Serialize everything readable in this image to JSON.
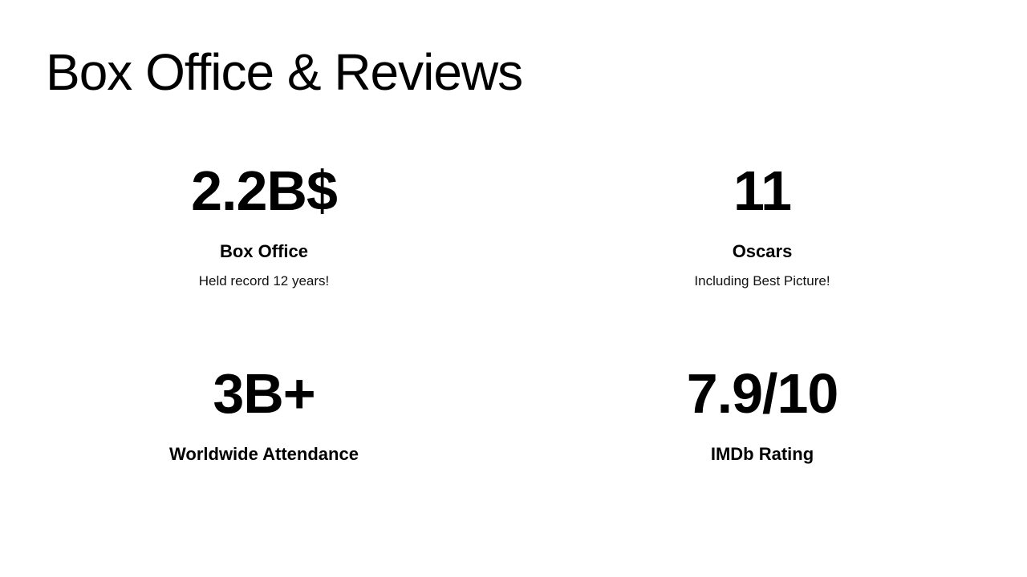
{
  "slide": {
    "title": "Box Office & Reviews",
    "stats": [
      {
        "value": "2.2B$",
        "label": "Box Office",
        "note": "Held record 12 years!"
      },
      {
        "value": "11",
        "label": "Oscars",
        "note": "Including Best Picture!"
      },
      {
        "value": "3B+",
        "label": "Worldwide Attendance"
      },
      {
        "value": "7.9/10",
        "label": "IMDb Rating"
      }
    ]
  }
}
